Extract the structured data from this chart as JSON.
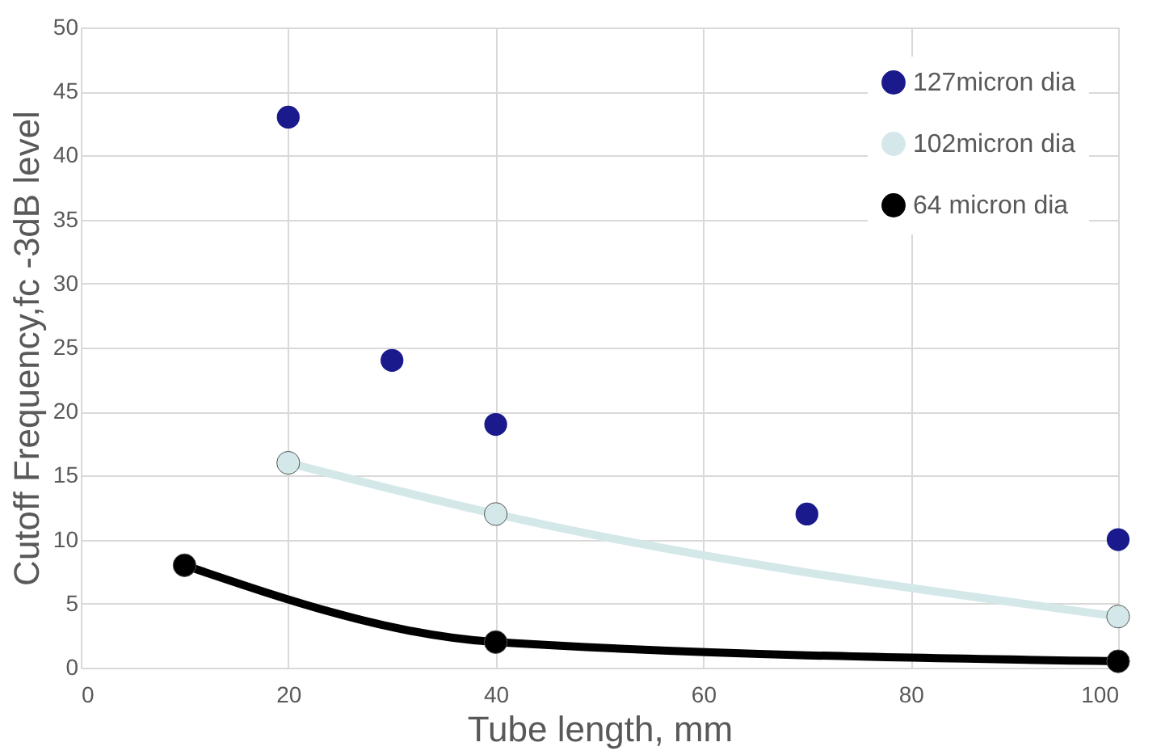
{
  "chart_data": {
    "type": "scatter",
    "xlabel": "Tube length, mm",
    "ylabel": "Cutoff Frequency,fc -3dB level",
    "xlim": [
      0,
      100
    ],
    "xticks": [
      0,
      20,
      40,
      60,
      80,
      100
    ],
    "ylim": [
      0,
      50
    ],
    "yticks": [
      0,
      5,
      10,
      15,
      20,
      25,
      30,
      35,
      40,
      45,
      50
    ],
    "grid": true,
    "legend": "top right",
    "marker": "circle",
    "series": [
      {
        "name": "127micron dia",
        "color": "#1a1a8c",
        "x": [
          20,
          30,
          40,
          70,
          100
        ],
        "values": [
          43,
          24,
          19,
          12,
          10
        ]
      },
      {
        "name": "102micron dia",
        "type": "line",
        "color": "#d4e8ea",
        "x": [
          20,
          40,
          100
        ],
        "values": [
          16,
          12,
          4
        ]
      },
      {
        "name": "64 micron dia",
        "type": "line",
        "color": "#000000",
        "x": [
          10,
          40,
          100
        ],
        "values": [
          8,
          2,
          0.5
        ]
      }
    ]
  }
}
